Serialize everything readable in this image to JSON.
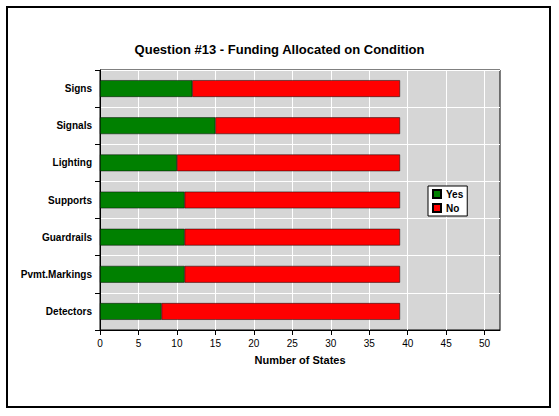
{
  "chart_data": {
    "type": "bar",
    "title": "Question #13 - Funding Allocated on Condition",
    "orientation": "horizontal",
    "stacked": true,
    "grid": true,
    "legend": "right",
    "categories": [
      "Signs",
      "Signals",
      "Lighting",
      "Supports",
      "Guardrails",
      "Pvmt.Markings",
      "Detectors"
    ],
    "series": [
      {
        "name": "Yes",
        "color": "#008000",
        "values": [
          12,
          15,
          10,
          11,
          11,
          11,
          8
        ]
      },
      {
        "name": "No",
        "color": "#ff0000",
        "values": [
          27,
          24,
          29,
          28,
          28,
          28,
          31
        ]
      }
    ],
    "xlabel": "Number of States",
    "xlim": [
      0,
      52
    ],
    "xticks": [
      0,
      5,
      10,
      15,
      20,
      25,
      30,
      35,
      40,
      45,
      50
    ]
  }
}
